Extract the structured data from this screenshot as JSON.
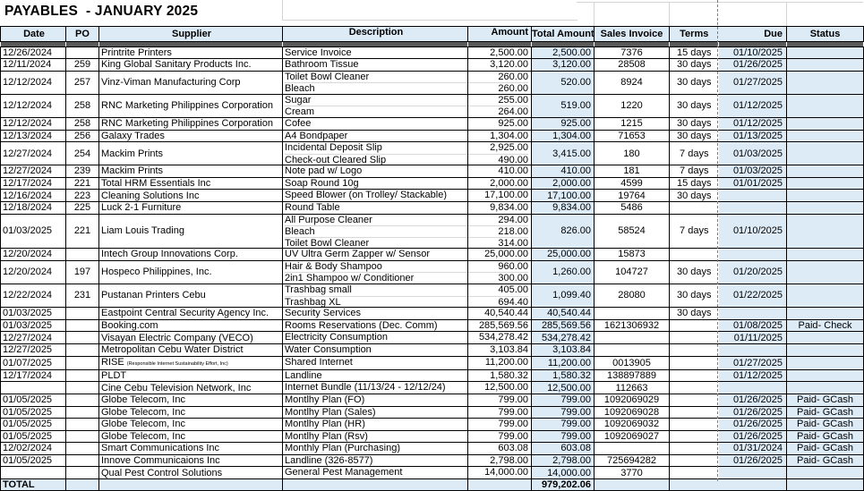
{
  "title": "PAYABLES  - JANUARY 2025",
  "colors": {
    "accent_fill": "#DDEBF7",
    "strip_fill": "#595959",
    "page_break": "#7f7f7f",
    "border": "#000000"
  },
  "table": {
    "columns": [
      {
        "key": "date",
        "label": "Date"
      },
      {
        "key": "po",
        "label": "PO"
      },
      {
        "key": "supplier",
        "label": "Supplier"
      },
      {
        "key": "desc",
        "label": "Description"
      },
      {
        "key": "amount",
        "label": "Amount"
      },
      {
        "key": "total",
        "label": "Total Amount"
      },
      {
        "key": "invoice",
        "label": "Sales Invoice"
      },
      {
        "key": "terms",
        "label": "Terms"
      },
      {
        "key": "due",
        "label": "Due"
      },
      {
        "key": "status",
        "label": "Status"
      }
    ],
    "rows": [
      {
        "date": "12/26/2024",
        "po": "",
        "supplier": "Printrite Printers",
        "note": "",
        "desc": [
          "Service Invoice"
        ],
        "amount": [
          "2,500.00"
        ],
        "total": "2,500.00",
        "invoice": "7376",
        "terms": "15 days",
        "due": "01/10/2025",
        "status": ""
      },
      {
        "date": "12/11/2024",
        "po": "259",
        "supplier": "King Global Sanitary Products Inc.",
        "note": "",
        "desc": [
          "Bathroom Tissue"
        ],
        "amount": [
          "3,120.00"
        ],
        "total": "3,120.00",
        "invoice": "28508",
        "terms": "30 days",
        "due": "01/26/2025",
        "status": ""
      },
      {
        "date": "12/12/2024",
        "po": "257",
        "supplier": "Vinz-Viman Manufacturing Corp",
        "note": "",
        "desc": [
          "Toilet Bowl Cleaner",
          "Bleach"
        ],
        "amount": [
          "260.00",
          "260.00"
        ],
        "total": "520.00",
        "invoice": "8924",
        "terms": "30 days",
        "due": "01/27/2025",
        "status": ""
      },
      {
        "date": "12/12/2024",
        "po": "258",
        "supplier": "RNC Marketing Philippines Corporation",
        "note": "",
        "desc": [
          "Sugar",
          "Cream"
        ],
        "amount": [
          "255.00",
          "264.00"
        ],
        "total": "519.00",
        "invoice": "1220",
        "terms": "30 days",
        "due": "01/12/2025",
        "status": ""
      },
      {
        "date": "12/12/2024",
        "po": "258",
        "supplier": "RNC Marketing Philippines Corporation",
        "note": "",
        "desc": [
          "Cofee"
        ],
        "amount": [
          "925.00"
        ],
        "total": "925.00",
        "invoice": "1215",
        "terms": "30 days",
        "due": "01/12/2025",
        "status": ""
      },
      {
        "date": "12/13/2024",
        "po": "256",
        "supplier": "Galaxy Trades",
        "note": "",
        "desc": [
          "A4 Bondpaper"
        ],
        "amount": [
          "1,304.00"
        ],
        "total": "1,304.00",
        "invoice": "71653",
        "terms": "30 days",
        "due": "01/13/2025",
        "status": ""
      },
      {
        "date": "12/27/2024",
        "po": "254",
        "supplier": "Mackim Prints",
        "note": "",
        "desc": [
          "Incidental Deposit Slip",
          "Check-out Cleared Slip"
        ],
        "amount": [
          "2,925.00",
          "490.00"
        ],
        "total": "3,415.00",
        "invoice": "180",
        "terms": "7 days",
        "due": "01/03/2025",
        "status": ""
      },
      {
        "date": "12/27/2024",
        "po": "239",
        "supplier": "Mackim Prints",
        "note": "",
        "desc": [
          "Note pad w/ Logo"
        ],
        "amount": [
          "410.00"
        ],
        "total": "410.00",
        "invoice": "181",
        "terms": "7 days",
        "due": "01/03/2025",
        "status": ""
      },
      {
        "date": "12/17/2024",
        "po": "221",
        "supplier": "Total HRM Essentials Inc",
        "note": "",
        "desc": [
          "Soap Round 10g"
        ],
        "amount": [
          "2,000.00"
        ],
        "total": "2,000.00",
        "invoice": "4599",
        "terms": "15 days",
        "due": "01/01/2025",
        "status": ""
      },
      {
        "date": "12/16/2024",
        "po": "223",
        "supplier": "Cleaning Solutions Inc",
        "note": "",
        "desc": [
          "Speed Blower (on Trolley/ Stackable)"
        ],
        "amount": [
          "17,100.00"
        ],
        "total": "17,100.00",
        "invoice": "19764",
        "terms": "30 days",
        "due": "",
        "status": ""
      },
      {
        "date": "12/18/2024",
        "po": "225",
        "supplier": "Luck 2-1 Furniture",
        "note": "",
        "desc": [
          "Round Table"
        ],
        "amount": [
          "9,834.00"
        ],
        "total": "9,834.00",
        "invoice": "5486",
        "terms": "",
        "due": "",
        "status": ""
      },
      {
        "date": "01/03/2025",
        "po": "221",
        "supplier": "Liam Louis Trading",
        "note": "",
        "desc": [
          "All Purpose Cleaner",
          "Bleach",
          "Toilet Bowl Cleaner"
        ],
        "amount": [
          "294.00",
          "218.00",
          "314.00"
        ],
        "total": "826.00",
        "invoice": "58524",
        "terms": "7 days",
        "due": "01/10/2025",
        "status": ""
      },
      {
        "date": "12/20/2024",
        "po": "",
        "supplier": "Intech Group Innovations Corp.",
        "note": "",
        "desc": [
          "UV Ultra Germ Zapper w/ Sensor"
        ],
        "amount": [
          "25,000.00"
        ],
        "total": "25,000.00",
        "invoice": "15873",
        "terms": "",
        "due": "",
        "status": ""
      },
      {
        "date": "12/20/2024",
        "po": "197",
        "supplier": "Hospeco Philippines, Inc.",
        "note": "",
        "desc": [
          "Hair & Body Shampoo",
          "2in1 Shampoo w/ Conditioner"
        ],
        "amount": [
          "960.00",
          "300.00"
        ],
        "total": "1,260.00",
        "invoice": "104727",
        "terms": "30 days",
        "due": "01/20/2025",
        "status": ""
      },
      {
        "date": "12/22/2024",
        "po": "231",
        "supplier": "Pustanan Printers Cebu",
        "note": "",
        "desc": [
          "Trashbag small",
          "Trashbag XL"
        ],
        "amount": [
          "405.00",
          "694.40"
        ],
        "total": "1,099.40",
        "invoice": "28080",
        "terms": "30 days",
        "due": "01/22/2025",
        "status": ""
      },
      {
        "date": "01/03/2025",
        "po": "",
        "supplier": "Eastpoint Central Security Agency Inc.",
        "note": "",
        "desc": [
          "Security Services"
        ],
        "amount": [
          "40,540.44"
        ],
        "total": "40,540.44",
        "invoice": "",
        "terms": "30 days",
        "due": "",
        "status": ""
      },
      {
        "date": "01/03/2025",
        "po": "",
        "supplier": "Booking.com",
        "note": "",
        "desc": [
          "Rooms Reservations (Dec. Comm)"
        ],
        "amount": [
          "285,569.56"
        ],
        "total": "285,569.56",
        "invoice": "1621306932",
        "terms": "",
        "due": "01/08/2025",
        "status": "Paid- Check"
      },
      {
        "date": "12/27/2024",
        "po": "",
        "supplier": "Visayan Electric Company (VECO)",
        "note": "",
        "desc": [
          "Electricity Consumption"
        ],
        "amount": [
          "534,278.42"
        ],
        "total": "534,278.42",
        "invoice": "",
        "terms": "",
        "due": "01/11/2025",
        "status": ""
      },
      {
        "date": "12/27/2025",
        "po": "",
        "supplier": "Metropolitan Cebu Water District",
        "note": "",
        "desc": [
          "Water Consumption"
        ],
        "amount": [
          "3,103.84"
        ],
        "total": "3,103.84",
        "invoice": "",
        "terms": "",
        "due": "",
        "status": ""
      },
      {
        "date": "01/07/2025",
        "po": "",
        "supplier": "RISE ",
        "note": "(Responsible Internet Sustainability Effort, Inc)",
        "desc": [
          "Shared Internet"
        ],
        "amount": [
          "11,200.00"
        ],
        "total": "11,200.00",
        "invoice": "0013905",
        "terms": "",
        "due": "01/27/2025",
        "status": ""
      },
      {
        "date": "12/17/2024",
        "po": "",
        "supplier": "PLDT",
        "note": "",
        "desc": [
          "Landline"
        ],
        "amount": [
          "1,580.32"
        ],
        "total": "1,580.32",
        "invoice": "138897889",
        "terms": "",
        "due": "01/12/2025",
        "status": ""
      },
      {
        "date": "",
        "po": "",
        "supplier": "Cine Cebu Television Network, Inc",
        "note": "",
        "desc": [
          "Internet Bundle (11/13/24 - 12/12/24)"
        ],
        "amount": [
          "12,500.00"
        ],
        "total": "12,500.00",
        "invoice": "112663",
        "terms": "",
        "due": "",
        "status": ""
      },
      {
        "date": "01/05/2025",
        "po": "",
        "supplier": "Globe Telecom, Inc",
        "note": "",
        "desc": [
          "Montlhy Plan (FO)"
        ],
        "amount": [
          "799.00"
        ],
        "total": "799.00",
        "invoice": "1092069029",
        "terms": "",
        "due": "01/26/2025",
        "status": "Paid- GCash"
      },
      {
        "date": "01/05/2025",
        "po": "",
        "supplier": "Globe Telecom, Inc",
        "note": "",
        "desc": [
          "Montlhy Plan (Sales)"
        ],
        "amount": [
          "799.00"
        ],
        "total": "799.00",
        "invoice": "1092069028",
        "terms": "",
        "due": "01/26/2025",
        "status": "Paid- GCash"
      },
      {
        "date": "01/05/2025",
        "po": "",
        "supplier": "Globe Telecom, Inc",
        "note": "",
        "desc": [
          "Montlhy Plan (HR)"
        ],
        "amount": [
          "799.00"
        ],
        "total": "799.00",
        "invoice": "1092069032",
        "terms": "",
        "due": "01/26/2025",
        "status": "Paid- GCash"
      },
      {
        "date": "01/05/2025",
        "po": "",
        "supplier": "Globe Telecom, Inc",
        "note": "",
        "desc": [
          "Montlhy Plan (Rsv)"
        ],
        "amount": [
          "799.00"
        ],
        "total": "799.00",
        "invoice": "1092069027",
        "terms": "",
        "due": "01/26/2025",
        "status": "Paid- GCash"
      },
      {
        "date": "12/02/2024",
        "po": "",
        "supplier": "Smart Communications Inc",
        "note": "",
        "desc": [
          "Monthly Plan (Purchasing)"
        ],
        "amount": [
          "603.08"
        ],
        "total": "603.08",
        "invoice": "",
        "terms": "",
        "due": "01/31/2024",
        "status": "Paid- GCash"
      },
      {
        "date": "01/05/2025",
        "po": "",
        "supplier": "Innove Communicaions Inc",
        "note": "",
        "desc": [
          "Landline (326-8577)"
        ],
        "amount": [
          "2,798.00"
        ],
        "total": "2,798.00",
        "invoice": "725694282",
        "terms": "",
        "due": "01/26/2025",
        "status": "Paid- GCash"
      },
      {
        "date": "",
        "po": "",
        "supplier": "Qual Pest Control Solutions",
        "note": "",
        "desc": [
          "General Pest Management"
        ],
        "amount": [
          "14,000.00"
        ],
        "total": "14,000.00",
        "invoice": "3770",
        "terms": "",
        "due": "",
        "status": ""
      }
    ],
    "total_row": {
      "label": "TOTAL",
      "total": "979,202.06"
    }
  }
}
